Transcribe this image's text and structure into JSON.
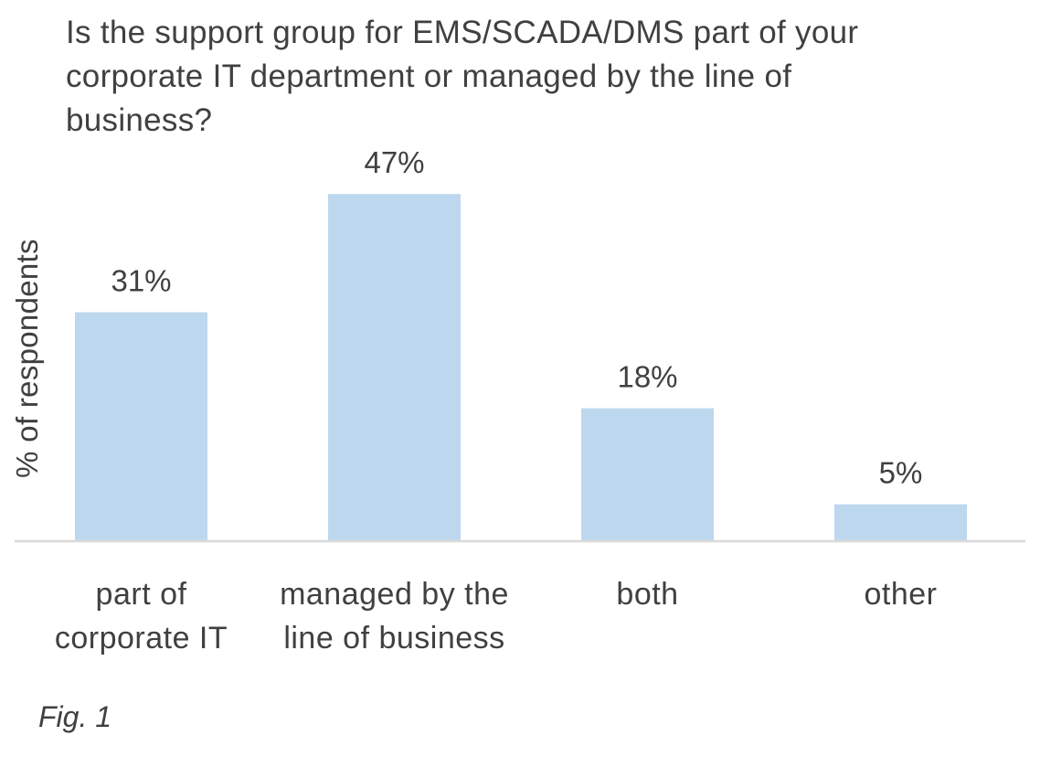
{
  "chart_data": {
    "type": "bar",
    "title": "Is the support group for EMS/SCADA/DMS  part of your corporate IT department  or managed by the line of business?",
    "ylabel": "% of respondents",
    "xlabel": "",
    "categories": [
      "part of\ncorporate IT",
      "managed by the\nline of business",
      "both",
      "other"
    ],
    "values": [
      31,
      47,
      18,
      5
    ],
    "data_labels": [
      "31%",
      "47%",
      "18%",
      "5%"
    ],
    "ylim": [
      0,
      50
    ],
    "grid": false,
    "legend": "none"
  },
  "caption": "Fig. 1",
  "colors": {
    "bar": "#bdd7ee",
    "axis": "#d9d9d9",
    "text": "#404040"
  }
}
